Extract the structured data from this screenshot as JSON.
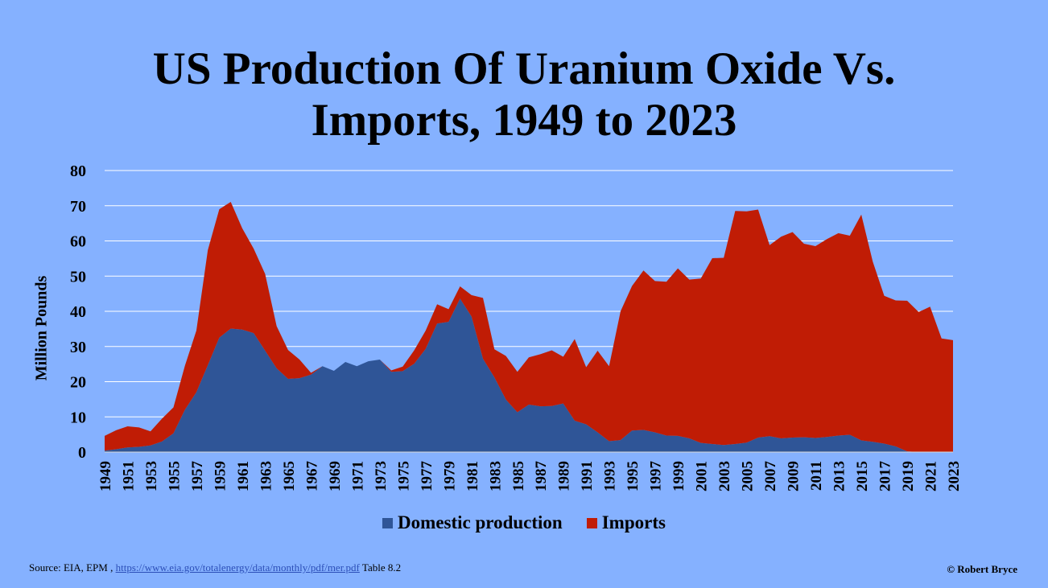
{
  "chart_data": {
    "type": "area",
    "stacked": true,
    "title": "US Production Of Uranium Oxide Vs. Imports, 1949 to 2023",
    "title_lines": [
      "US Production Of Uranium Oxide Vs.",
      "Imports, 1949 to 2023"
    ],
    "xlabel": "",
    "ylabel": "Million Pounds",
    "ylim": [
      0,
      80
    ],
    "yticks": [
      0,
      10,
      20,
      30,
      40,
      50,
      60,
      70,
      80
    ],
    "grid": true,
    "legend_position": "bottom",
    "x_start": 1949,
    "x_end": 2023,
    "xtick_step": 2,
    "series": [
      {
        "name": "Domestic production",
        "color": "#2f5597",
        "values": [
          0.4,
          0.8,
          1.3,
          1.5,
          1.9,
          3.0,
          5.3,
          12.0,
          17.0,
          24.7,
          32.5,
          35.1,
          34.8,
          33.8,
          28.8,
          23.8,
          20.8,
          21.0,
          22.0,
          24.4,
          23.1,
          25.6,
          24.4,
          25.8,
          26.3,
          22.8,
          23.0,
          25.1,
          29.3,
          36.5,
          37.0,
          43.6,
          38.5,
          26.5,
          21.2,
          14.9,
          11.3,
          13.5,
          13.0,
          13.1,
          13.8,
          8.9,
          7.9,
          5.6,
          3.1,
          3.4,
          6.1,
          6.3,
          5.6,
          4.7,
          4.6,
          3.9,
          2.6,
          2.3,
          2.0,
          2.3,
          2.7,
          4.1,
          4.5,
          3.9,
          4.1,
          4.2,
          4.0,
          4.3,
          4.7,
          4.9,
          3.3,
          2.9,
          2.4,
          1.6,
          0.2,
          0.0,
          0.0,
          0.1,
          0.1
        ]
      },
      {
        "name": "Imports",
        "color": "#c01c05",
        "values": [
          4.2,
          5.4,
          6.0,
          5.5,
          4.0,
          6.5,
          7.4,
          12.5,
          17.5,
          32.7,
          36.5,
          36.0,
          28.8,
          24.0,
          21.8,
          12.0,
          8.2,
          5.3,
          0.5,
          0,
          0,
          0,
          0,
          0,
          0,
          0.4,
          1.3,
          3.8,
          5.2,
          5.5,
          3.6,
          3.5,
          6.1,
          17.3,
          8.0,
          12.4,
          11.5,
          13.4,
          14.8,
          15.8,
          13.3,
          23.2,
          16.2,
          23.2,
          21.3,
          36.6,
          41.1,
          45.3,
          43.0,
          43.7,
          47.6,
          45.1,
          46.7,
          52.8,
          53.2,
          66.2,
          65.7,
          64.8,
          54.3,
          57.3,
          58.4,
          55.0,
          54.5,
          56.2,
          57.5,
          56.6,
          64.2,
          51.2,
          42.0,
          41.5,
          42.8,
          39.8,
          41.3,
          32.2,
          31.7
        ]
      }
    ]
  },
  "legend": {
    "items": [
      {
        "label": "Domestic production",
        "color": "#2f5597"
      },
      {
        "label": "Imports",
        "color": "#c01c05"
      }
    ]
  },
  "footer": {
    "source_prefix": "Source: EIA, EPM ,",
    "source_link": "https://www.eia.gov/totalenergy/data/monthly/pdf/mer.pdf",
    "source_suffix": "Table 8.2",
    "copyright": "© Robert Bryce"
  }
}
